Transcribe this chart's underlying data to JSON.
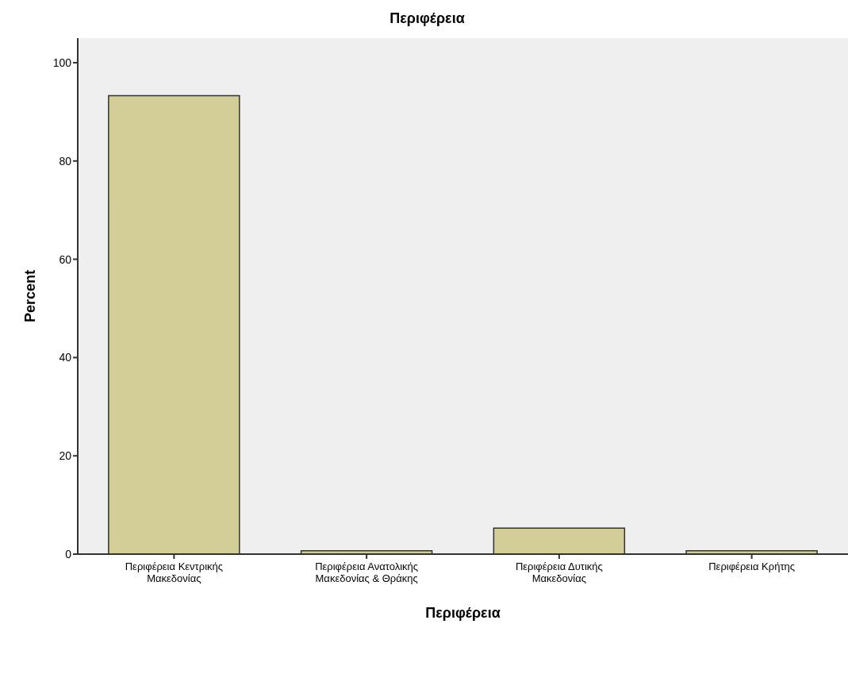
{
  "chart_data": {
    "type": "bar",
    "title": "Περιφέρεια",
    "xlabel": "Περιφέρεια",
    "ylabel": "Percent",
    "categories": [
      "Περιφέρεια Κεντρικής Μακεδονίας",
      "Περιφέρεια Ανατολικής Μακεδονίας & Θράκης",
      "Περιφέρεια Δυτικής Μακεδονίας",
      "Περιφέρεια Κρήτης"
    ],
    "values": [
      93.3,
      0.7,
      5.3,
      0.7
    ],
    "color": "#d3ce98",
    "ylim": [
      0,
      105
    ],
    "yticks": [
      0,
      20,
      40,
      60,
      80,
      100
    ],
    "grid": false
  }
}
